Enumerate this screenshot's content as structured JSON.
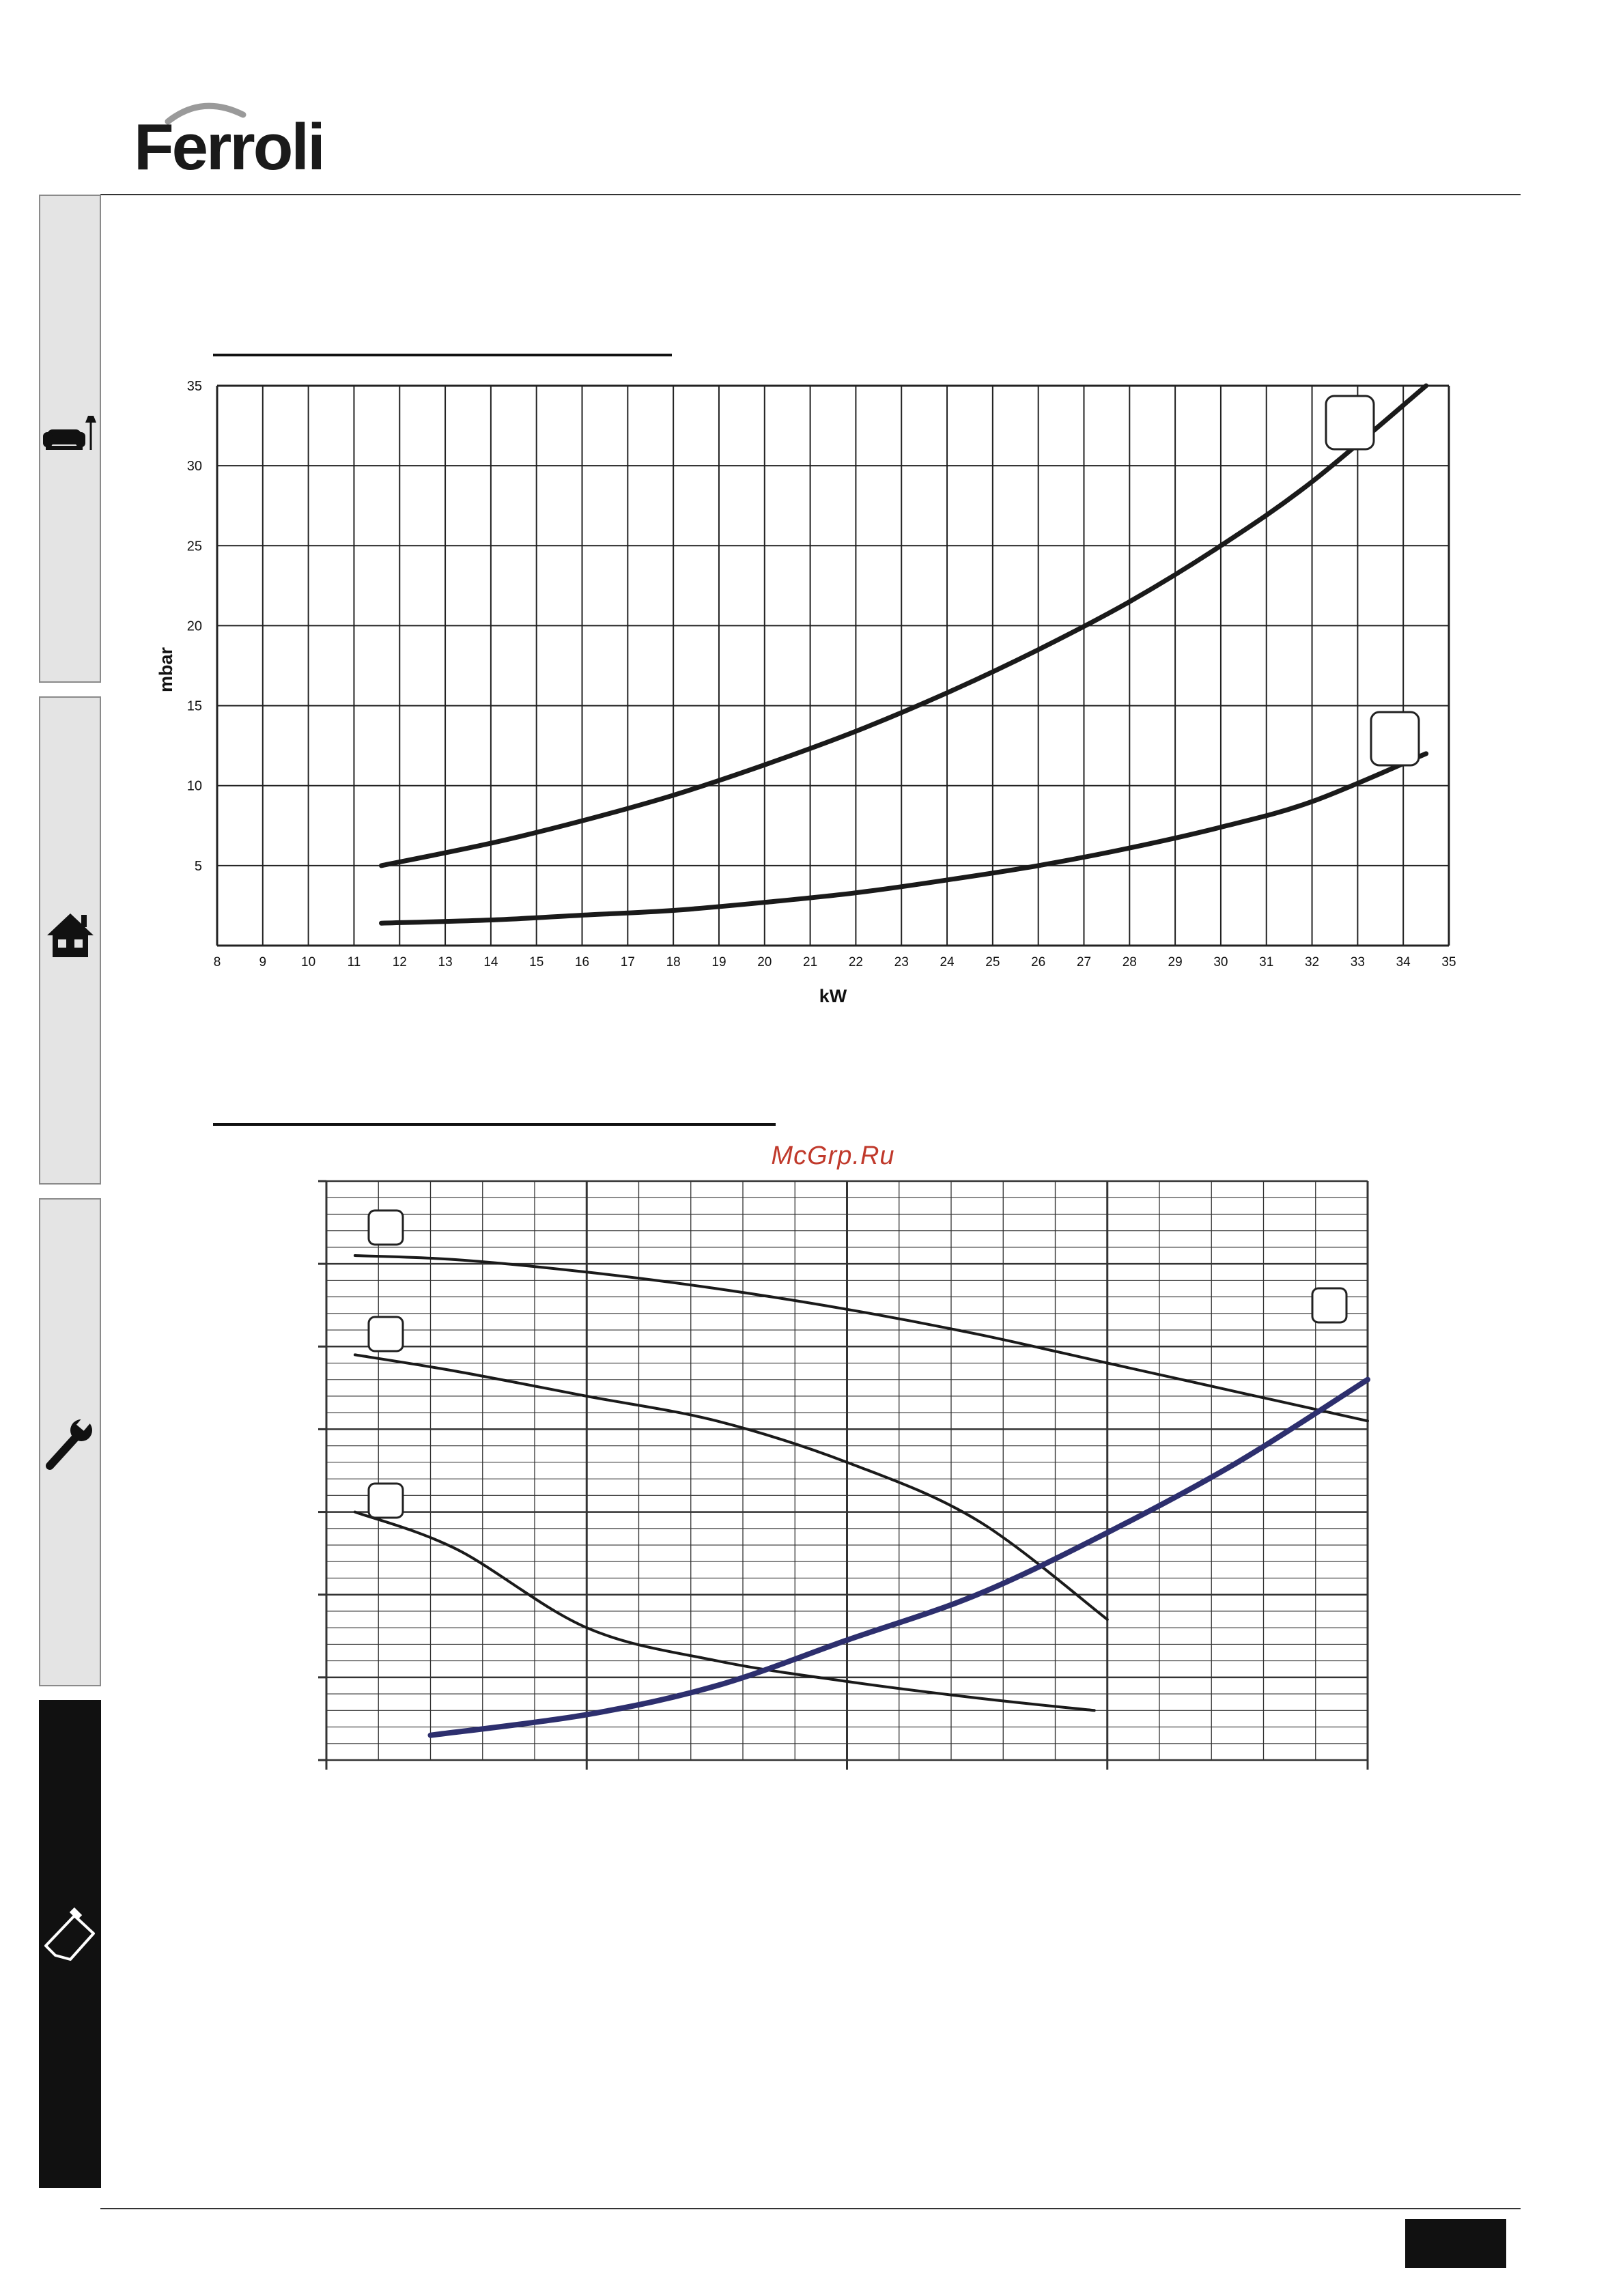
{
  "header": {
    "logo_text": "Ferroli"
  },
  "watermark": "McGrp.Ru",
  "sidebar": {
    "tabs": [
      {
        "icon": "armchair-icon"
      },
      {
        "icon": "house-icon"
      },
      {
        "icon": "wrench-icon"
      },
      {
        "icon": "clipboard-icon",
        "active": true
      }
    ]
  },
  "chart_data": [
    {
      "type": "line",
      "title": "",
      "xlabel": "kW",
      "ylabel": "mbar",
      "xlim": [
        8,
        35
      ],
      "ylim": [
        0,
        35
      ],
      "x_ticks": [
        "8",
        "9",
        "10",
        "11",
        "12",
        "13",
        "14",
        "15",
        "16",
        "17",
        "18",
        "19",
        "20",
        "21",
        "22",
        "23",
        "24",
        "25",
        "26",
        "27",
        "28",
        "29",
        "30",
        "31",
        "32",
        "33",
        "34",
        "35"
      ],
      "y_ticks": [
        "35",
        "30",
        "25",
        "20",
        "15",
        "10",
        "5"
      ],
      "grid": true,
      "series": [
        {
          "values": [
            [
              11.6,
              5.0
            ],
            [
              14,
              6.4
            ],
            [
              16,
              7.8
            ],
            [
              18,
              9.4
            ],
            [
              20,
              11.3
            ],
            [
              22,
              13.4
            ],
            [
              24,
              15.8
            ],
            [
              26,
              18.5
            ],
            [
              28,
              21.5
            ],
            [
              30,
              25.0
            ],
            [
              32,
              29.0
            ],
            [
              34.5,
              35.0
            ]
          ]
        },
        {
          "values": [
            [
              11.6,
              1.4
            ],
            [
              14,
              1.6
            ],
            [
              16,
              1.9
            ],
            [
              18,
              2.2
            ],
            [
              20,
              2.7
            ],
            [
              22,
              3.3
            ],
            [
              24,
              4.1
            ],
            [
              26,
              5.0
            ],
            [
              28,
              6.1
            ],
            [
              30,
              7.4
            ],
            [
              32,
              9.0
            ],
            [
              34.5,
              12.0
            ]
          ]
        }
      ],
      "markers": [
        "",
        ""
      ]
    },
    {
      "type": "line",
      "title": "",
      "xlabel": "",
      "ylabel": "",
      "xlim": [
        0,
        4
      ],
      "ylim": [
        0,
        7
      ],
      "grid": true,
      "series": [
        {
          "values": [
            [
              0.11,
              6.1
            ],
            [
              0.5,
              6.05
            ],
            [
              1.0,
              5.9
            ],
            [
              1.5,
              5.7
            ],
            [
              2.0,
              5.45
            ],
            [
              2.5,
              5.15
            ],
            [
              3.0,
              4.8
            ],
            [
              3.5,
              4.45
            ],
            [
              4.0,
              4.1
            ]
          ]
        },
        {
          "values": [
            [
              0.11,
              4.9
            ],
            [
              0.5,
              4.7
            ],
            [
              1.0,
              4.4
            ],
            [
              1.5,
              4.1
            ],
            [
              2.0,
              3.6
            ],
            [
              2.5,
              2.9
            ],
            [
              3.0,
              1.7
            ]
          ]
        },
        {
          "values": [
            [
              0.11,
              3.0
            ],
            [
              0.5,
              2.55
            ],
            [
              1.0,
              1.6
            ],
            [
              1.5,
              1.2
            ],
            [
              2.0,
              0.95
            ],
            [
              2.5,
              0.75
            ],
            [
              2.95,
              0.6
            ]
          ]
        },
        {
          "values": [
            [
              0.4,
              0.3
            ],
            [
              1.0,
              0.55
            ],
            [
              1.5,
              0.9
            ],
            [
              2.0,
              1.45
            ],
            [
              2.5,
              2.0
            ],
            [
              3.0,
              2.75
            ],
            [
              3.5,
              3.6
            ],
            [
              4.0,
              4.6
            ]
          ]
        }
      ],
      "markers": [
        "",
        "",
        "",
        ""
      ]
    }
  ]
}
